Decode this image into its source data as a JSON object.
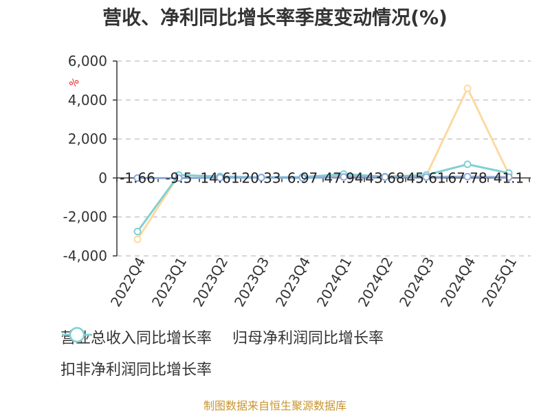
{
  "chart_data": {
    "type": "line",
    "title": "营收、净利同比增长率季度变动情况(%)",
    "unit": "%",
    "categories": [
      "2022Q4",
      "2023Q1",
      "2023Q2",
      "2023Q3",
      "2023Q4",
      "2024Q1",
      "2024Q2",
      "2024Q3",
      "2024Q4",
      "2025Q1"
    ],
    "ylim": [
      -4000,
      6000
    ],
    "yticks": [
      6000,
      4000,
      2000,
      0,
      -2000,
      -4000
    ],
    "ytick_labels": [
      "6,000",
      "4,000",
      "2,000",
      "0",
      "-2,000",
      "-4,000"
    ],
    "grid": true,
    "legend_position": "bottom-left",
    "series": [
      {
        "name": "营业总收入同比增长率",
        "color": "#8eaadb",
        "values": [
          -1.66,
          -9.5,
          14.61,
          20.33,
          6.97,
          47.94,
          43.68,
          45.61,
          67.78,
          41.1
        ],
        "data_labels": [
          "-1.66",
          "-9.5",
          "14.61",
          "20.33",
          "6.97",
          "47.94",
          "43.68",
          "45.61",
          "67.78",
          "41.1"
        ]
      },
      {
        "name": "归母净利润同比增长率",
        "color": "#fdd9a0",
        "values": [
          -3150,
          150,
          60,
          20,
          40,
          150,
          60,
          120,
          4600,
          200
        ]
      },
      {
        "name": "扣非净利润同比增长率",
        "color": "#7fd0d4",
        "values": [
          -2750,
          150,
          80,
          30,
          50,
          200,
          70,
          150,
          700,
          250
        ]
      }
    ]
  },
  "source_text": "制图数据来自恒生聚源数据库"
}
